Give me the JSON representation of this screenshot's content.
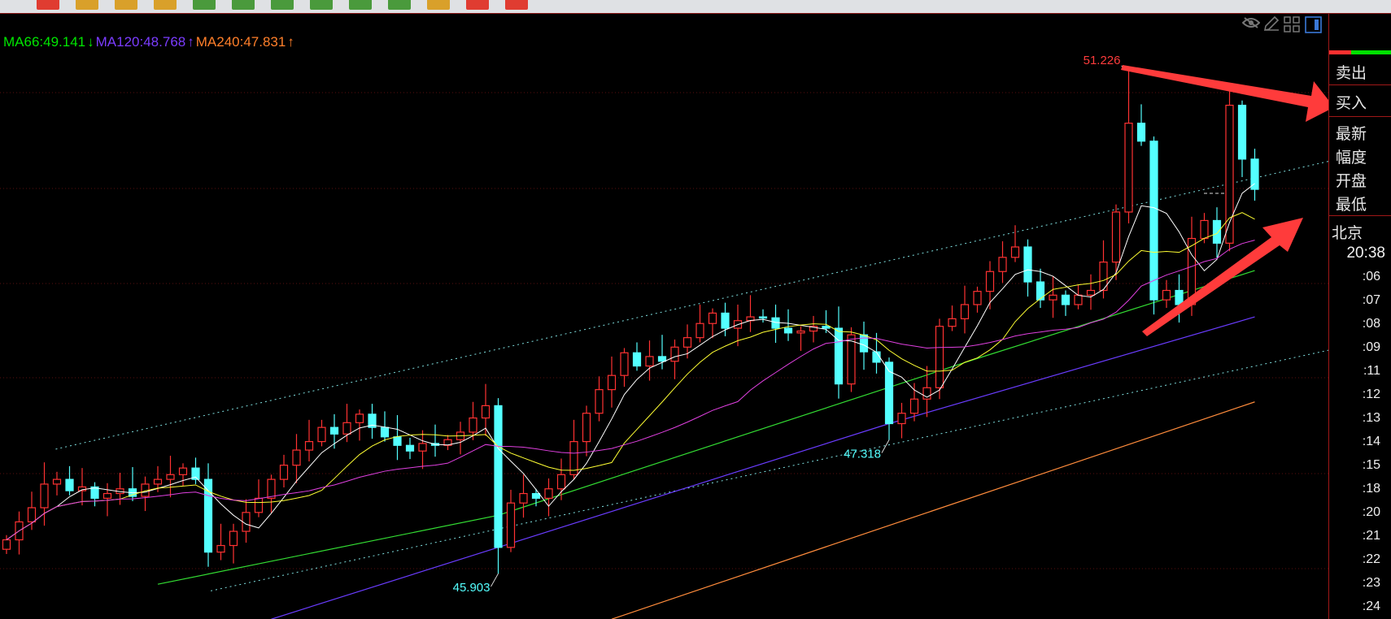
{
  "toolbar": {
    "button_colors": [
      "#e03c31",
      "#d9a02a",
      "#d9a02a",
      "#d9a02a",
      "#4a9a3c",
      "#4a9a3c",
      "#4a9a3c",
      "#4a9a3c",
      "#4a9a3c",
      "#4a9a3c",
      "#d9a02a",
      "#e03c31",
      "#e03c31"
    ]
  },
  "ma_legend": [
    {
      "text": "MA66:49.141",
      "arrow": "↓",
      "color": "#00e600"
    },
    {
      "text": "MA120:48.768",
      "arrow": "↑",
      "color": "#7b3cff"
    },
    {
      "text": "MA240:47.831",
      "arrow": "↑",
      "color": "#ff7f2a"
    }
  ],
  "chart_icons": [
    "eye-hidden-icon",
    "pencil-icon",
    "grid-icon",
    "panel-toggle-icon"
  ],
  "chart_data": {
    "type": "candlestick",
    "ylim": [
      45.4,
      51.5
    ],
    "up_color": "#ff3232",
    "down_color": "#54ffff",
    "closes": [
      46.26,
      46.45,
      46.6,
      46.85,
      46.9,
      46.78,
      46.82,
      46.7,
      46.75,
      46.8,
      46.72,
      46.85,
      46.9,
      46.95,
      47.02,
      46.9,
      46.13,
      46.2,
      46.35,
      46.55,
      46.7,
      46.9,
      47.05,
      47.21,
      47.3,
      47.45,
      47.38,
      47.5,
      47.59,
      47.45,
      47.35,
      47.26,
      47.2,
      47.28,
      47.26,
      47.32,
      47.4,
      47.55,
      47.68,
      46.18,
      46.65,
      46.75,
      46.7,
      46.8,
      46.95,
      47.3,
      47.6,
      47.85,
      48.0,
      48.24,
      48.1,
      48.2,
      48.15,
      48.3,
      48.4,
      48.55,
      48.66,
      48.5,
      48.58,
      48.62,
      48.61,
      48.5,
      48.45,
      48.47,
      48.52,
      48.5,
      47.91,
      48.43,
      48.25,
      48.14,
      47.49,
      47.6,
      47.75,
      47.87,
      48.52,
      48.6,
      48.75,
      48.89,
      49.1,
      49.25,
      49.36,
      48.99,
      48.8,
      48.85,
      48.75,
      48.85,
      48.9,
      49.2,
      49.73,
      50.67,
      50.48,
      48.8,
      48.9,
      48.75,
      49.45,
      49.64,
      49.4,
      50.86,
      50.29,
      49.97
    ],
    "extremes": [
      {
        "label": "51.226",
        "index": 89,
        "value": 51.226,
        "type": "high",
        "color": "#ff3c3c"
      },
      {
        "label": "45.903",
        "index": 39,
        "value": 45.903,
        "type": "low",
        "color": "#54ffff"
      },
      {
        "label": "47.318",
        "index": 70,
        "value": 47.318,
        "type": "low",
        "color": "#54ffff"
      }
    ],
    "short_ma": [
      {
        "period": 5,
        "color": "#ffffff"
      },
      {
        "period": 10,
        "color": "#ffff33"
      },
      {
        "period": 20,
        "color": "#e040e0"
      }
    ],
    "long_ma": [
      {
        "name": "MA66",
        "color": "#33dd33",
        "points": [
          [
            12,
            45.79
          ],
          [
            39,
            46.52
          ],
          [
            77,
            48.18
          ],
          [
            99,
            49.11
          ]
        ]
      },
      {
        "name": "MA120",
        "color": "#6a3cff",
        "points": [
          [
            21,
            45.42
          ],
          [
            70,
            47.49
          ],
          [
            99,
            48.62
          ]
        ]
      },
      {
        "name": "MA240",
        "color": "#ff8c3c",
        "points": [
          [
            48,
            45.42
          ],
          [
            99,
            47.72
          ]
        ]
      }
    ],
    "channel_lines": [
      {
        "color": "#7fe0e0",
        "points": [
          [
            3.9,
            47.22
          ],
          [
            105.3,
            50.28
          ]
        ]
      },
      {
        "color": "#7fe0e0",
        "points": [
          [
            16.2,
            45.72
          ],
          [
            105.3,
            48.28
          ]
        ]
      }
    ]
  },
  "panel": {
    "bid_ask_bar": {
      "sell_ratio": 0.35,
      "sell_color": "#ff3030",
      "buy_color": "#00e000"
    },
    "sell_label": "卖出",
    "buy_label": "买入",
    "fields": [
      "最新",
      "幅度",
      "开盘",
      "最低"
    ],
    "location": "北京",
    "time": "20:38",
    "minutes": [
      ":06",
      ":07",
      ":08",
      ":09",
      ":11",
      ":12",
      ":13",
      ":14",
      ":15",
      ":18",
      ":20",
      ":21",
      ":22",
      ":23",
      ":24"
    ]
  }
}
